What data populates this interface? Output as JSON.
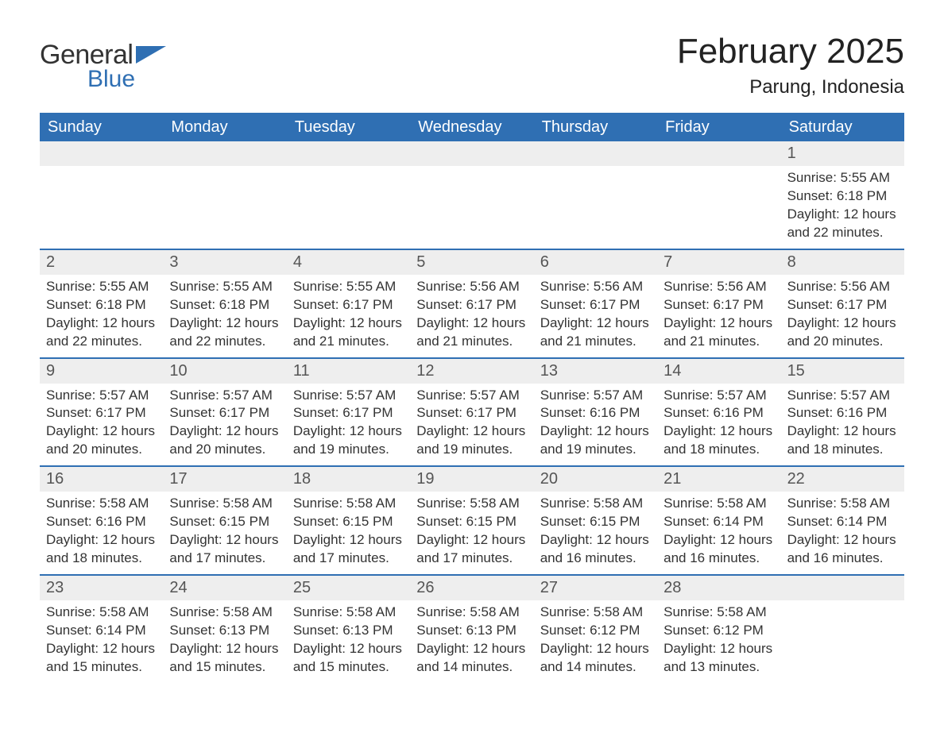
{
  "logo": {
    "text1": "General",
    "text2": "Blue",
    "triangle_color": "#2f6fb3"
  },
  "title": "February 2025",
  "location": "Parung, Indonesia",
  "colors": {
    "header_bg": "#2f6fb3",
    "header_text": "#ffffff",
    "daynum_bg": "#eeeeee",
    "body_text": "#333333",
    "rule": "#2f6fb3"
  },
  "day_names": [
    "Sunday",
    "Monday",
    "Tuesday",
    "Wednesday",
    "Thursday",
    "Friday",
    "Saturday"
  ],
  "weeks": [
    [
      {
        "day": null
      },
      {
        "day": null
      },
      {
        "day": null
      },
      {
        "day": null
      },
      {
        "day": null
      },
      {
        "day": null
      },
      {
        "day": 1,
        "sunrise": "Sunrise: 5:55 AM",
        "sunset": "Sunset: 6:18 PM",
        "daylight1": "Daylight: 12 hours",
        "daylight2": "and 22 minutes."
      }
    ],
    [
      {
        "day": 2,
        "sunrise": "Sunrise: 5:55 AM",
        "sunset": "Sunset: 6:18 PM",
        "daylight1": "Daylight: 12 hours",
        "daylight2": "and 22 minutes."
      },
      {
        "day": 3,
        "sunrise": "Sunrise: 5:55 AM",
        "sunset": "Sunset: 6:18 PM",
        "daylight1": "Daylight: 12 hours",
        "daylight2": "and 22 minutes."
      },
      {
        "day": 4,
        "sunrise": "Sunrise: 5:55 AM",
        "sunset": "Sunset: 6:17 PM",
        "daylight1": "Daylight: 12 hours",
        "daylight2": "and 21 minutes."
      },
      {
        "day": 5,
        "sunrise": "Sunrise: 5:56 AM",
        "sunset": "Sunset: 6:17 PM",
        "daylight1": "Daylight: 12 hours",
        "daylight2": "and 21 minutes."
      },
      {
        "day": 6,
        "sunrise": "Sunrise: 5:56 AM",
        "sunset": "Sunset: 6:17 PM",
        "daylight1": "Daylight: 12 hours",
        "daylight2": "and 21 minutes."
      },
      {
        "day": 7,
        "sunrise": "Sunrise: 5:56 AM",
        "sunset": "Sunset: 6:17 PM",
        "daylight1": "Daylight: 12 hours",
        "daylight2": "and 21 minutes."
      },
      {
        "day": 8,
        "sunrise": "Sunrise: 5:56 AM",
        "sunset": "Sunset: 6:17 PM",
        "daylight1": "Daylight: 12 hours",
        "daylight2": "and 20 minutes."
      }
    ],
    [
      {
        "day": 9,
        "sunrise": "Sunrise: 5:57 AM",
        "sunset": "Sunset: 6:17 PM",
        "daylight1": "Daylight: 12 hours",
        "daylight2": "and 20 minutes."
      },
      {
        "day": 10,
        "sunrise": "Sunrise: 5:57 AM",
        "sunset": "Sunset: 6:17 PM",
        "daylight1": "Daylight: 12 hours",
        "daylight2": "and 20 minutes."
      },
      {
        "day": 11,
        "sunrise": "Sunrise: 5:57 AM",
        "sunset": "Sunset: 6:17 PM",
        "daylight1": "Daylight: 12 hours",
        "daylight2": "and 19 minutes."
      },
      {
        "day": 12,
        "sunrise": "Sunrise: 5:57 AM",
        "sunset": "Sunset: 6:17 PM",
        "daylight1": "Daylight: 12 hours",
        "daylight2": "and 19 minutes."
      },
      {
        "day": 13,
        "sunrise": "Sunrise: 5:57 AM",
        "sunset": "Sunset: 6:16 PM",
        "daylight1": "Daylight: 12 hours",
        "daylight2": "and 19 minutes."
      },
      {
        "day": 14,
        "sunrise": "Sunrise: 5:57 AM",
        "sunset": "Sunset: 6:16 PM",
        "daylight1": "Daylight: 12 hours",
        "daylight2": "and 18 minutes."
      },
      {
        "day": 15,
        "sunrise": "Sunrise: 5:57 AM",
        "sunset": "Sunset: 6:16 PM",
        "daylight1": "Daylight: 12 hours",
        "daylight2": "and 18 minutes."
      }
    ],
    [
      {
        "day": 16,
        "sunrise": "Sunrise: 5:58 AM",
        "sunset": "Sunset: 6:16 PM",
        "daylight1": "Daylight: 12 hours",
        "daylight2": "and 18 minutes."
      },
      {
        "day": 17,
        "sunrise": "Sunrise: 5:58 AM",
        "sunset": "Sunset: 6:15 PM",
        "daylight1": "Daylight: 12 hours",
        "daylight2": "and 17 minutes."
      },
      {
        "day": 18,
        "sunrise": "Sunrise: 5:58 AM",
        "sunset": "Sunset: 6:15 PM",
        "daylight1": "Daylight: 12 hours",
        "daylight2": "and 17 minutes."
      },
      {
        "day": 19,
        "sunrise": "Sunrise: 5:58 AM",
        "sunset": "Sunset: 6:15 PM",
        "daylight1": "Daylight: 12 hours",
        "daylight2": "and 17 minutes."
      },
      {
        "day": 20,
        "sunrise": "Sunrise: 5:58 AM",
        "sunset": "Sunset: 6:15 PM",
        "daylight1": "Daylight: 12 hours",
        "daylight2": "and 16 minutes."
      },
      {
        "day": 21,
        "sunrise": "Sunrise: 5:58 AM",
        "sunset": "Sunset: 6:14 PM",
        "daylight1": "Daylight: 12 hours",
        "daylight2": "and 16 minutes."
      },
      {
        "day": 22,
        "sunrise": "Sunrise: 5:58 AM",
        "sunset": "Sunset: 6:14 PM",
        "daylight1": "Daylight: 12 hours",
        "daylight2": "and 16 minutes."
      }
    ],
    [
      {
        "day": 23,
        "sunrise": "Sunrise: 5:58 AM",
        "sunset": "Sunset: 6:14 PM",
        "daylight1": "Daylight: 12 hours",
        "daylight2": "and 15 minutes."
      },
      {
        "day": 24,
        "sunrise": "Sunrise: 5:58 AM",
        "sunset": "Sunset: 6:13 PM",
        "daylight1": "Daylight: 12 hours",
        "daylight2": "and 15 minutes."
      },
      {
        "day": 25,
        "sunrise": "Sunrise: 5:58 AM",
        "sunset": "Sunset: 6:13 PM",
        "daylight1": "Daylight: 12 hours",
        "daylight2": "and 15 minutes."
      },
      {
        "day": 26,
        "sunrise": "Sunrise: 5:58 AM",
        "sunset": "Sunset: 6:13 PM",
        "daylight1": "Daylight: 12 hours",
        "daylight2": "and 14 minutes."
      },
      {
        "day": 27,
        "sunrise": "Sunrise: 5:58 AM",
        "sunset": "Sunset: 6:12 PM",
        "daylight1": "Daylight: 12 hours",
        "daylight2": "and 14 minutes."
      },
      {
        "day": 28,
        "sunrise": "Sunrise: 5:58 AM",
        "sunset": "Sunset: 6:12 PM",
        "daylight1": "Daylight: 12 hours",
        "daylight2": "and 13 minutes."
      },
      {
        "day": null
      }
    ]
  ]
}
